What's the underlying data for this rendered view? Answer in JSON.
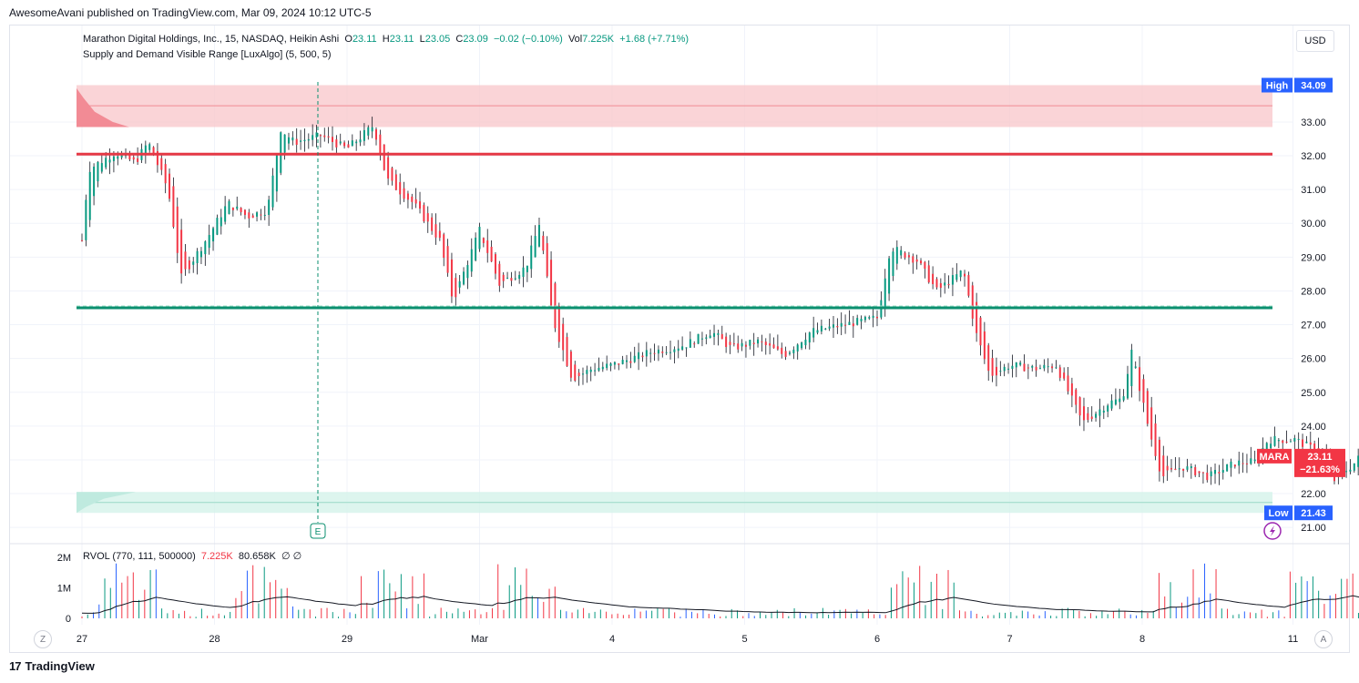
{
  "header": {
    "publisher": "AwesomeAvani published on TradingView.com, Mar 09, 2024 10:12 UTC-5"
  },
  "legend": {
    "title": "Marathon Digital Holdings, Inc., 15, NASDAQ, Heikin Ashi",
    "o_label": "O",
    "o": "23.11",
    "h_label": "H",
    "h": "23.11",
    "l_label": "L",
    "l": "23.05",
    "c_label": "C",
    "c": "23.09",
    "change": "−0.02 (−0.10%)",
    "vol_label": "Vol",
    "vol": "7.225K",
    "vol_change": "+1.68 (+7.71%)",
    "indicator": "Supply and Demand Visible Range [LuxAlgo] (5, 500, 5)"
  },
  "currency": "USD",
  "rvol": {
    "label": "RVOL (770, 111, 500000)",
    "v1": "7.225K",
    "v2": "80.658K",
    "v3": "∅  ∅"
  },
  "badges": {
    "high_label": "High",
    "high_value": "34.09",
    "low_label": "Low",
    "low_value": "21.43",
    "ticker": "MARA",
    "last": "23.11",
    "last_change": "−21.63%",
    "earnings": "E"
  },
  "controls": {
    "z": "Z",
    "a": "A"
  },
  "brand": {
    "logo": "17",
    "name": "TradingView"
  },
  "colors": {
    "up": "#089981",
    "down": "#f23645",
    "supply_zone": "#f9c9cd",
    "demand_zone": "#d4f2ea",
    "resistance": "#e53945",
    "support": "#0b8f6f",
    "high_badge": "#2962ff",
    "ticker_badge": "#f23645"
  },
  "chart_data": {
    "type": "candlestick",
    "style": "Heikin Ashi",
    "interval": "15",
    "symbol": "MARA",
    "x_ticks": [
      "27",
      "28",
      "29",
      "Mar",
      "4",
      "5",
      "6",
      "7",
      "8",
      "11"
    ],
    "y_ticks": [
      "33.00",
      "32.00",
      "31.00",
      "30.00",
      "29.00",
      "28.00",
      "27.00",
      "26.00",
      "25.00",
      "24.00",
      "23.00",
      "22.00",
      "21.00"
    ],
    "ylim": [
      20.6,
      34.4
    ],
    "grid": true,
    "levels": {
      "high": 34.09,
      "low": 21.43,
      "resistance": 32.05,
      "support": 27.5,
      "last": 23.11
    },
    "zones": {
      "supply": [
        32.85,
        34.09
      ],
      "demand": [
        21.43,
        22.05
      ]
    },
    "close_path": [
      [
        0,
        29.5
      ],
      [
        0.05,
        31.6
      ],
      [
        0.25,
        32.1
      ],
      [
        0.4,
        31.8
      ],
      [
        0.5,
        32.4
      ],
      [
        0.65,
        31.0
      ],
      [
        0.75,
        28.4
      ],
      [
        0.95,
        29.6
      ],
      [
        1.1,
        30.6
      ],
      [
        1.25,
        30.2
      ],
      [
        1.4,
        30.4
      ],
      [
        1.5,
        32.8
      ],
      [
        1.6,
        32.4
      ],
      [
        1.8,
        32.6
      ],
      [
        2.0,
        32.2
      ],
      [
        2.2,
        32.9
      ],
      [
        2.3,
        31.3
      ],
      [
        2.5,
        30.6
      ],
      [
        2.7,
        29.5
      ],
      [
        2.8,
        27.7
      ],
      [
        3.0,
        29.8
      ],
      [
        3.15,
        28.2
      ],
      [
        3.35,
        28.7
      ],
      [
        3.45,
        30.0
      ],
      [
        3.55,
        27.2
      ],
      [
        3.7,
        25.4
      ],
      [
        3.85,
        25.7
      ],
      [
        4.0,
        25.8
      ],
      [
        4.3,
        26.2
      ],
      [
        4.55,
        26.4
      ],
      [
        4.75,
        26.8
      ],
      [
        4.9,
        26.3
      ],
      [
        5.1,
        26.5
      ],
      [
        5.3,
        26.1
      ],
      [
        5.5,
        26.8
      ],
      [
        5.75,
        27.0
      ],
      [
        6.0,
        27.2
      ],
      [
        6.1,
        29.3
      ],
      [
        6.3,
        28.9
      ],
      [
        6.45,
        28.0
      ],
      [
        6.65,
        28.6
      ],
      [
        6.75,
        26.7
      ],
      [
        6.85,
        25.5
      ],
      [
        7.0,
        25.8
      ],
      [
        7.2,
        25.7
      ],
      [
        7.35,
        25.8
      ],
      [
        7.55,
        24.1
      ],
      [
        7.75,
        24.7
      ],
      [
        7.85,
        24.8
      ],
      [
        7.92,
        26.2
      ],
      [
        8.05,
        23.9
      ],
      [
        8.15,
        22.5
      ],
      [
        8.3,
        22.8
      ],
      [
        8.5,
        22.5
      ],
      [
        8.7,
        22.9
      ],
      [
        8.85,
        22.95
      ],
      [
        8.95,
        23.6
      ],
      [
        9.15,
        23.6
      ],
      [
        9.35,
        23.2
      ],
      [
        9.45,
        22.4
      ],
      [
        9.6,
        22.9
      ],
      [
        9.75,
        23.6
      ],
      [
        9.9,
        23.2
      ],
      [
        10.05,
        22.6
      ],
      [
        10.2,
        22.4
      ],
      [
        10.4,
        22.5
      ],
      [
        10.6,
        22.6
      ],
      [
        10.8,
        22.4
      ],
      [
        11.0,
        22.35
      ],
      [
        11.2,
        22.0
      ],
      [
        11.4,
        21.7
      ],
      [
        11.6,
        21.8
      ],
      [
        11.8,
        21.85
      ],
      [
        11.95,
        21.95
      ],
      [
        12.05,
        22.3
      ],
      [
        12.15,
        24.6
      ],
      [
        12.3,
        23.2
      ],
      [
        12.5,
        23.4
      ],
      [
        12.65,
        23.8
      ],
      [
        12.8,
        23.3
      ],
      [
        12.9,
        23.11
      ]
    ],
    "rvol_axis": [
      "2M",
      "1M",
      "0"
    ]
  }
}
